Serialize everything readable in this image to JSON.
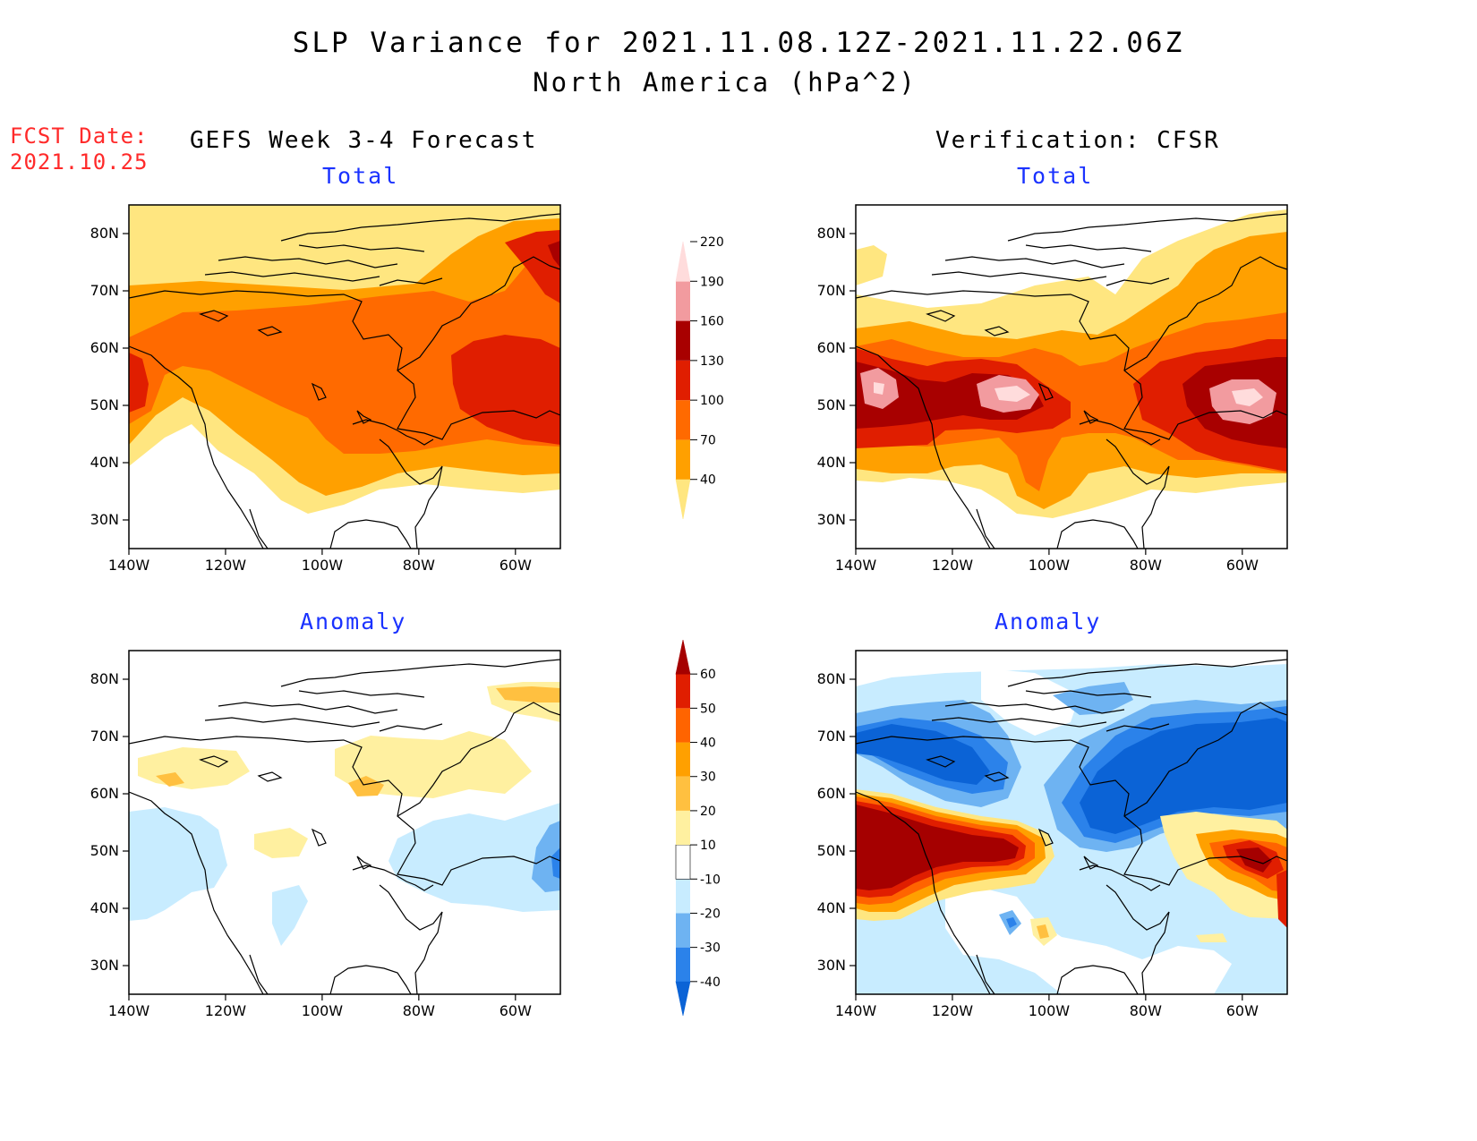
{
  "title": "SLP Variance for 2021.11.08.12Z-2021.11.22.06Z",
  "subtitle": "North America (hPa^2)",
  "fcst_label": "FCST Date:",
  "fcst_date": "2021.10.25",
  "left_column_title": "GEFS Week 3-4 Forecast",
  "right_column_title": "Verification: CFSR",
  "panels": {
    "fcst_total": {
      "title": "Total"
    },
    "fcst_anomaly": {
      "title": "Anomaly"
    },
    "verif_total": {
      "title": "Total"
    },
    "verif_anomaly": {
      "title": "Anomaly"
    }
  },
  "axes": {
    "lat_ticks": [
      "30N",
      "40N",
      "50N",
      "60N",
      "70N",
      "80N"
    ],
    "lon_ticks": [
      "140W",
      "120W",
      "100W",
      "80W",
      "60W"
    ]
  },
  "colorbars": {
    "total": {
      "levels": [
        "40",
        "70",
        "100",
        "130",
        "160",
        "190",
        "220"
      ],
      "colors": [
        "#ffe680",
        "#ffa000",
        "#ff6a00",
        "#e01e00",
        "#a80000",
        "#f29b9f",
        "#ffdcdc"
      ]
    },
    "anomaly": {
      "levels": [
        "-40",
        "-30",
        "-20",
        "-10",
        "10",
        "20",
        "30",
        "40",
        "50",
        "60"
      ],
      "colors": [
        "#0b63d6",
        "#2b82ea",
        "#6eb3f2",
        "#c8ecff",
        "#ffffff",
        "#fff0a0",
        "#ffc040",
        "#ffa000",
        "#ff6400",
        "#e01e00",
        "#a50000"
      ]
    }
  },
  "colors": {
    "fcst_label": "#ff2a2a",
    "panel_title": "#1a32ff"
  }
}
